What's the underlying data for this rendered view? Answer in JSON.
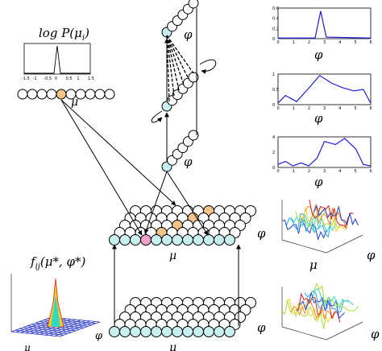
{
  "labels": {
    "log_p_mu": "log P(μ",
    "log_p_sub": "i",
    "log_p_close": ")",
    "mu_top_row": "μ",
    "phi_column_top": "φ",
    "phi_column_bottom": "φ",
    "mu_grid_top": "μ",
    "phi_grid_top": "φ",
    "mu_grid_bottom": "μ",
    "phi_grid_bottom": "φ",
    "f_ij": "f",
    "f_ij_sub": "ij",
    "f_ij_args": "(μ*, φ*)",
    "phi_plot1": "φ",
    "phi_plot2": "φ",
    "phi_plot3": "φ",
    "mu_surf_top": "μ",
    "phi_surf_top": "φ",
    "phi_surf_bottom": "φ",
    "mu_surf_left": "μ"
  },
  "colors": {
    "node_fill": "#ffffff",
    "node_stroke": "#000000",
    "highlight_cyan": "#c8f0f0",
    "highlight_orange": "#f5c48a",
    "highlight_pink": "#f5a0c8",
    "plot_line": "#1f1fd6"
  },
  "plots": {
    "plot1": {
      "x_ticks": [
        "0",
        "1",
        "2",
        "3",
        "4",
        "5",
        "6"
      ],
      "y_ticks": [
        "0",
        "0.2",
        "0.4",
        "0.6"
      ]
    },
    "plot2": {
      "x_ticks": [
        "0",
        "1",
        "2",
        "3",
        "4",
        "5",
        "6"
      ],
      "y_ticks": [
        "0",
        "0.5",
        "1"
      ]
    },
    "plot3": {
      "x_ticks": [
        "0",
        "1",
        "2",
        "3",
        "4",
        "5",
        "6"
      ],
      "y_ticks": [
        "0",
        "2",
        "4"
      ]
    },
    "logp": {
      "x_ticks": [
        "-1.5",
        "-1",
        "-0.5",
        "0",
        "0.5",
        "1",
        "1.5"
      ]
    }
  }
}
